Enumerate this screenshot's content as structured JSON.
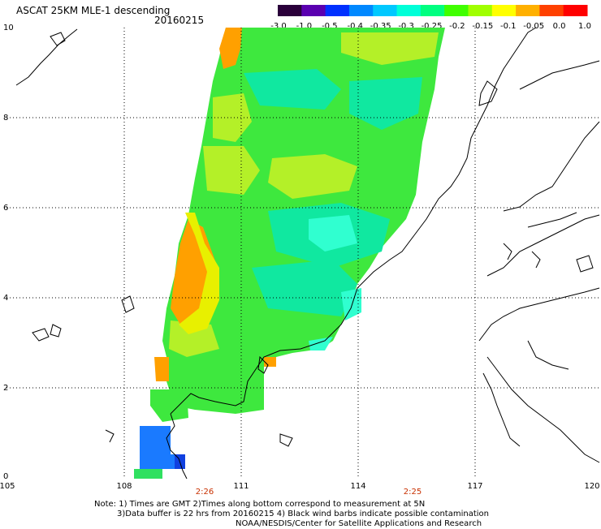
{
  "header": {
    "title": "ASCAT 25KM MLE-1 descending",
    "date": "20160215"
  },
  "colorbar": {
    "labels": [
      "-3.0",
      "-1.0",
      "-0.5",
      "-0.4",
      "-0.35",
      "-0.3",
      "-0.25",
      "-0.2",
      "-0.15",
      "-0.1",
      "-0.05",
      "0.0",
      "1.0"
    ],
    "colors": [
      "#2a003a",
      "#5a00b0",
      "#0030ff",
      "#0088ff",
      "#00c8ff",
      "#00ffd8",
      "#00ff80",
      "#40ff00",
      "#a0ff00",
      "#ffff00",
      "#ffb000",
      "#ff4000",
      "#ff0000"
    ]
  },
  "axes": {
    "lon_labels": [
      "105",
      "108",
      "111",
      "114",
      "117",
      "120"
    ],
    "lat_labels": [
      "0",
      "2",
      "4",
      "6",
      "8",
      "10"
    ],
    "time_labels": [
      "2:26",
      "2:25"
    ]
  },
  "notes": {
    "line1": "Note: 1) Times are GMT 2)Times along bottom correspond to measurement at 5N",
    "line2": "3)Data buffer is 22 hrs from 20160215 4) Black wind barbs indicate possible contamination",
    "line3": "NOAA/NESDIS/Center for Satellite Applications and Research"
  },
  "swath_colors": {
    "orange": "#ffa000",
    "yellow_green": "#c8ff20",
    "green": "#40f040",
    "cyan_green": "#00f0a0",
    "cyan": "#30ffd0",
    "blue": "#1a7aff"
  }
}
